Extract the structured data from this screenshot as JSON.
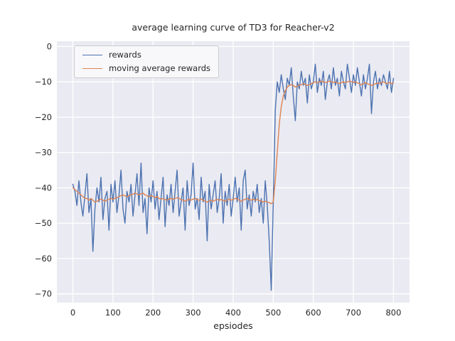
{
  "figure": {
    "background": "#ffffff"
  },
  "chart_data": {
    "type": "line",
    "title": "average learning curve of TD3 for Reacher-v2",
    "xlabel": "epsiodes",
    "ylabel": "",
    "grid": true,
    "legend_position": "upper left",
    "colors": {
      "axes_background": "#eaeaf2",
      "grid": "#ffffff",
      "text": "#262626"
    },
    "xlim": [
      -40,
      840
    ],
    "ylim": [
      -72.5,
      1.5
    ],
    "x_ticks": [
      0,
      100,
      200,
      300,
      400,
      500,
      600,
      700,
      800
    ],
    "x_tick_labels": [
      "0",
      "100",
      "200",
      "300",
      "400",
      "500",
      "600",
      "700",
      "800"
    ],
    "y_ticks": [
      0,
      -10,
      -20,
      -30,
      -40,
      -50,
      -60,
      -70
    ],
    "y_tick_labels": [
      "0",
      "−10",
      "−20",
      "−30",
      "−40",
      "−50",
      "−60",
      "−70"
    ],
    "x_start": 0,
    "x_step": 5,
    "series": [
      {
        "name": "rewards",
        "color": "#4c72b0",
        "values": [
          -39,
          -41,
          -45,
          -38,
          -44,
          -48,
          -42,
          -36,
          -47,
          -43,
          -58,
          -46,
          -40,
          -44,
          -37,
          -49,
          -43,
          -41,
          -52,
          -39,
          -44,
          -38,
          -47,
          -42,
          -35,
          -46,
          -50,
          -41,
          -44,
          -39,
          -48,
          -42,
          -36,
          -45,
          -33,
          -47,
          -43,
          -53,
          -40,
          -44,
          -38,
          -46,
          -41,
          -49,
          -43,
          -37,
          -51,
          -42,
          -45,
          -39,
          -47,
          -41,
          -35,
          -48,
          -44,
          -40,
          -52,
          -38,
          -45,
          -42,
          -33,
          -46,
          -43,
          -49,
          -37,
          -44,
          -41,
          -55,
          -39,
          -46,
          -42,
          -38,
          -47,
          -43,
          -36,
          -50,
          -41,
          -45,
          -39,
          -48,
          -43,
          -37,
          -44,
          -40,
          -52,
          -38,
          -35,
          -46,
          -42,
          -48,
          -41,
          -44,
          -39,
          -47,
          -43,
          -50,
          -38,
          -45,
          -55,
          -69,
          -44,
          -18,
          -10,
          -13,
          -8,
          -12,
          -15,
          -9,
          -11,
          -6,
          -14,
          -21,
          -10,
          -12,
          -7,
          -11,
          -9,
          -16,
          -8,
          -12,
          -10,
          -5,
          -13,
          -9,
          -11,
          -7,
          -15,
          -10,
          -8,
          -12,
          -6,
          -11,
          -9,
          -14,
          -7,
          -10,
          -12,
          -5,
          -9,
          -13,
          -8,
          -11,
          -6,
          -10,
          -14,
          -8,
          -12,
          -9,
          -5,
          -19,
          -10,
          -7,
          -12,
          -9,
          -11,
          -8,
          -10,
          -12,
          -7,
          -13,
          -9
        ]
      },
      {
        "name": "moving average rewards",
        "color": "#dd8452",
        "values": [
          -40,
          -40.5,
          -41,
          -41.5,
          -42,
          -42.5,
          -43,
          -43,
          -43.5,
          -43,
          -43.5,
          -44,
          -43.8,
          -43.5,
          -43.2,
          -43.5,
          -43.8,
          -43.5,
          -43.2,
          -43,
          -43.2,
          -43,
          -42.8,
          -42.5,
          -42.2,
          -42,
          -42.3,
          -42.5,
          -42.2,
          -42,
          -41.8,
          -41.5,
          -41.8,
          -42,
          -41.7,
          -41.5,
          -42,
          -42.3,
          -42.5,
          -42.2,
          -42.5,
          -42.8,
          -42.5,
          -43,
          -43.2,
          -43,
          -43.3,
          -43.5,
          -43.2,
          -43,
          -43.2,
          -43,
          -42.8,
          -43,
          -43.3,
          -43.5,
          -43.8,
          -43.5,
          -43.2,
          -43.5,
          -43.2,
          -43,
          -43.3,
          -43.5,
          -43.2,
          -43.5,
          -43.8,
          -44,
          -43.8,
          -43.5,
          -43.8,
          -43.5,
          -43.2,
          -43.5,
          -43.3,
          -43.6,
          -43.8,
          -43.5,
          -43.2,
          -43.5,
          -43.3,
          -43,
          -43.2,
          -43.5,
          -43.8,
          -43.5,
          -43.2,
          -43,
          -43.3,
          -43.5,
          -43.2,
          -43.5,
          -43.3,
          -43.6,
          -43.8,
          -44,
          -43.8,
          -44,
          -44.2,
          -44.5,
          -44,
          -38,
          -30,
          -22,
          -17,
          -14,
          -12.5,
          -11.5,
          -11,
          -10.8,
          -11,
          -11.5,
          -11.2,
          -11,
          -10.8,
          -10.5,
          -10.8,
          -11,
          -10.8,
          -10.5,
          -10.2,
          -10,
          -10.2,
          -10,
          -9.8,
          -10,
          -10.2,
          -10,
          -9.8,
          -10,
          -10.2,
          -10,
          -10.3,
          -10.5,
          -10.2,
          -10,
          -10.2,
          -10,
          -9.8,
          -10,
          -10.2,
          -10,
          -10.3,
          -10.5,
          -10.8,
          -10.5,
          -10.2,
          -10.5,
          -10.8,
          -11,
          -10.8,
          -10.5,
          -10.3,
          -10.5,
          -10.2,
          -10,
          -10.3,
          -10.5,
          -10.2,
          -10.5,
          -10.3
        ]
      }
    ]
  }
}
